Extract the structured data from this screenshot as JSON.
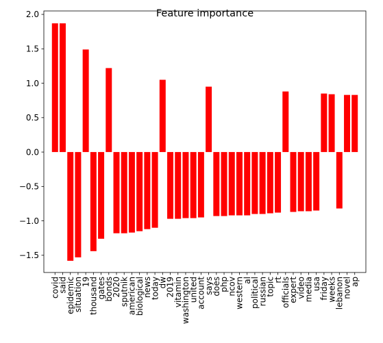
{
  "chart_data": {
    "type": "bar",
    "title": "Feature importance",
    "xlabel": "",
    "ylabel": "",
    "ylim": [
      -1.75,
      2.05
    ],
    "yticks": [
      2.0,
      1.5,
      1.0,
      0.5,
      0.0,
      -0.5,
      -1.0,
      -1.5
    ],
    "ytick_labels": [
      "2.0",
      "1.5",
      "1.0",
      "0.5",
      "0.0",
      "−0.5",
      "−1.0",
      "−1.5"
    ],
    "bar_color": "#ff0000",
    "grid": false,
    "categories": [
      "covid",
      "said",
      "epidemic",
      "situation",
      "19",
      "thousand",
      "gates",
      "bonds",
      "2020",
      "sputnik",
      "american",
      "biological",
      "news",
      "today",
      "dw",
      "2019",
      "vitamin",
      "washington",
      "united",
      "account",
      "says",
      "does",
      "php",
      "ncov",
      "western",
      "al",
      "political",
      "russian",
      "topic",
      "rt",
      "officials",
      "expert",
      "video",
      "media",
      "usa",
      "friday",
      "weeks",
      "lebanon",
      "novel",
      "ap"
    ],
    "values": [
      1.87,
      1.87,
      -1.58,
      -1.53,
      1.49,
      -1.44,
      -1.26,
      1.22,
      -1.18,
      -1.18,
      -1.17,
      -1.15,
      -1.12,
      -1.1,
      1.05,
      -0.97,
      -0.97,
      -0.96,
      -0.96,
      -0.95,
      0.95,
      -0.93,
      -0.93,
      -0.92,
      -0.92,
      -0.92,
      -0.9,
      -0.9,
      -0.89,
      -0.88,
      0.88,
      -0.87,
      -0.86,
      -0.86,
      -0.85,
      0.85,
      0.84,
      -0.82,
      0.83,
      0.83
    ]
  }
}
